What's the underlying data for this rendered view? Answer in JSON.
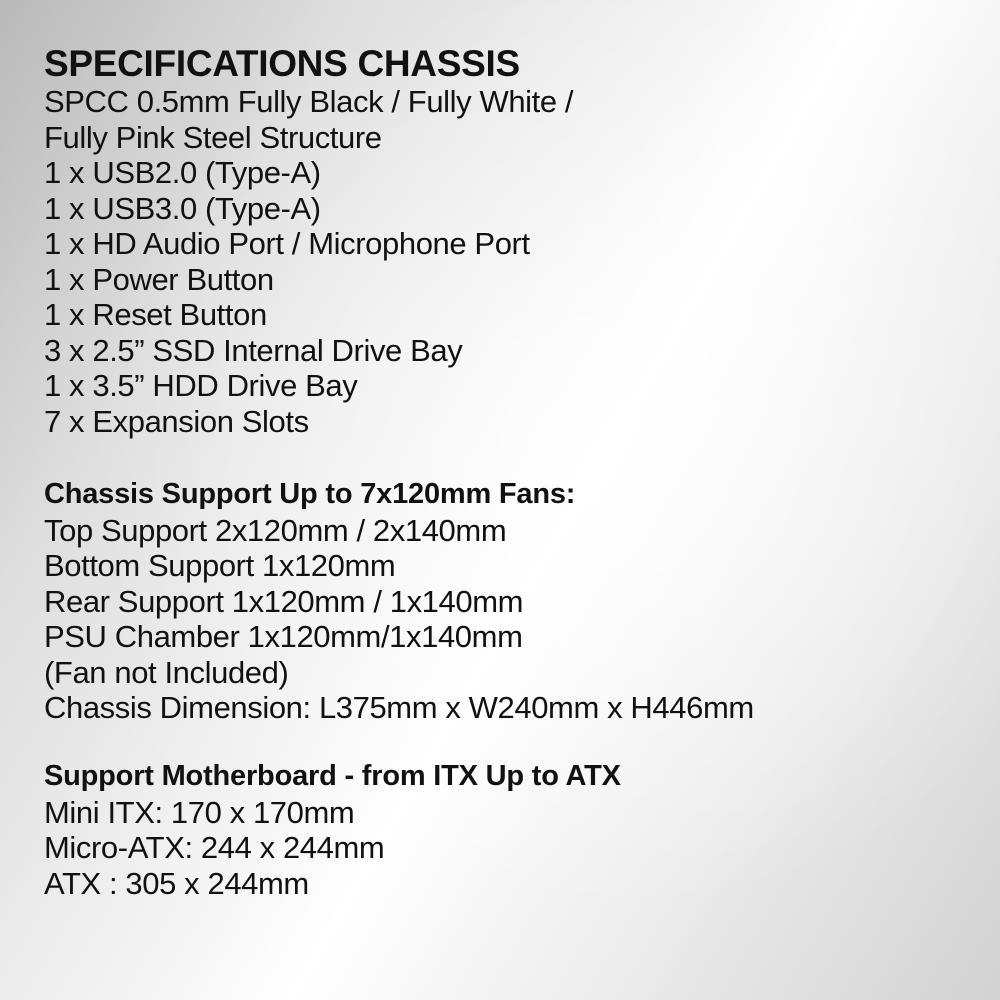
{
  "title": "SPECIFICATIONS CHASSIS",
  "chassis_lines": [
    "SPCC 0.5mm Fully Black / Fully White /",
    "Fully Pink Steel Structure",
    "1 x USB2.0 (Type-A)",
    "1 x USB3.0 (Type-A)",
    "1 x HD Audio Port / Microphone Port",
    "1 x Power Button",
    "1 x Reset Button",
    "3 x 2.5” SSD Internal Drive Bay",
    "1 x 3.5” HDD Drive Bay",
    "7 x Expansion Slots"
  ],
  "fans": {
    "heading": "Chassis Support Up to 7x120mm Fans:",
    "lines": [
      "Top Support 2x120mm / 2x140mm",
      "Bottom Support 1x120mm",
      "Rear Support 1x120mm / 1x140mm",
      "PSU Chamber 1x120mm/1x140mm",
      "(Fan not Included)",
      "Chassis Dimension: L375mm x W240mm x H446mm"
    ]
  },
  "motherboard": {
    "heading": "Support Motherboard - from ITX Up to ATX",
    "lines": [
      "Mini ITX: 170 x 170mm",
      "Micro-ATX: 244 x 244mm",
      "ATX : 305 x 244mm"
    ]
  }
}
